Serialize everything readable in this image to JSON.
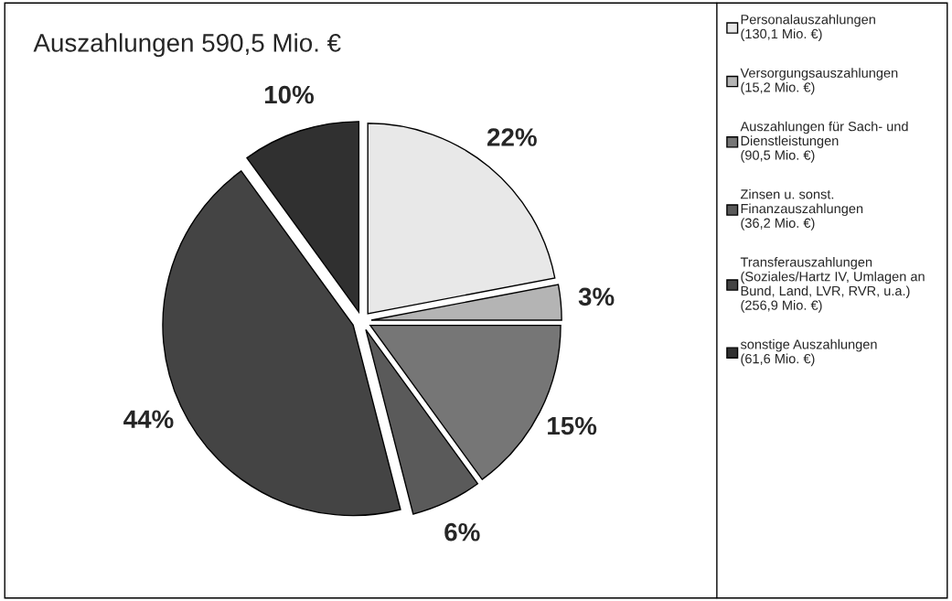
{
  "chart_data": {
    "type": "pie",
    "title": "Auszahlungen 590,5 Mio. €",
    "categories": [
      "Personalauszahlungen\n(130,1 Mio. €)",
      "Versorgungsauszahlungen\n(15,2 Mio. €)",
      "Auszahlungen für Sach- und\nDienstleistungen\n(90,5 Mio. €)",
      "Zinsen u. sonst.\nFinanzauszahlungen\n(36,2 Mio. €)",
      "Transferauszahlungen\n(Soziales/Hartz IV, Umlagen an\nBund, Land, LVR, RVR, u.a.)\n(256,9 Mio. €)",
      "sonstige Auszahlungen\n(61,6 Mio. €)"
    ],
    "values": [
      22,
      3,
      15,
      6,
      44,
      10
    ],
    "value_labels": [
      "22%",
      "3%",
      "15%",
      "6%",
      "44%",
      "10%"
    ],
    "colors": [
      "#e8e8e8",
      "#b4b4b4",
      "#767676",
      "#5a5a5a",
      "#444444",
      "#303030"
    ],
    "legend": "right"
  }
}
